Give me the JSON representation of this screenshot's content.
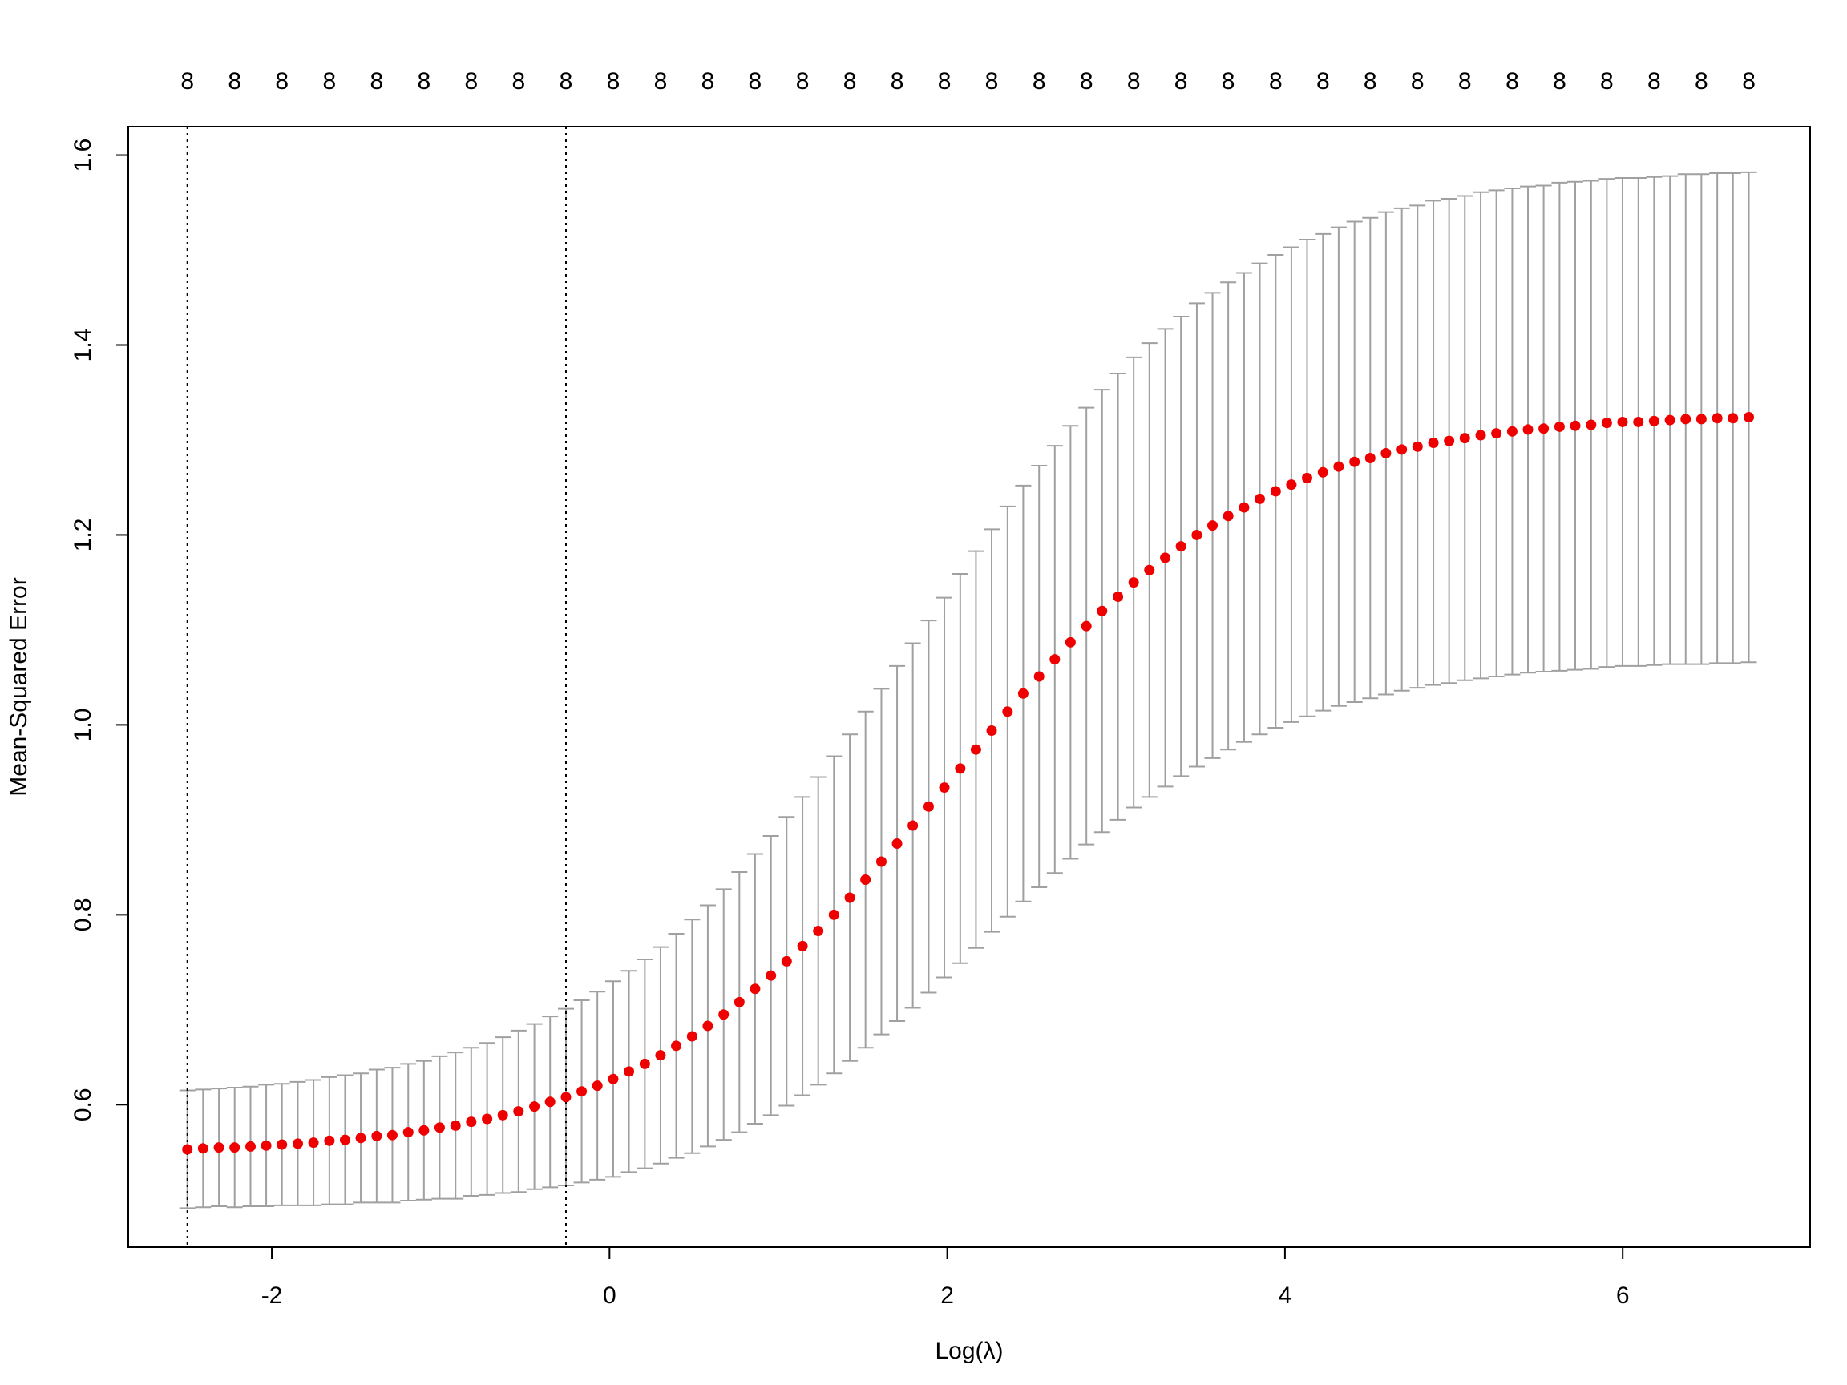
{
  "chart_data": {
    "type": "errorbar",
    "xlabel": "Log(λ)",
    "ylabel": "Mean-Squared Error",
    "x": [
      -2.5,
      -2.407,
      -2.313,
      -2.22,
      -2.126,
      -2.033,
      -1.94,
      -1.846,
      -1.753,
      -1.659,
      -1.566,
      -1.473,
      -1.379,
      -1.286,
      -1.192,
      -1.099,
      -1.006,
      -0.912,
      -0.819,
      -0.725,
      -0.632,
      -0.539,
      -0.445,
      -0.352,
      -0.258,
      -0.165,
      -0.072,
      0.022,
      0.115,
      0.209,
      0.302,
      0.395,
      0.489,
      0.582,
      0.676,
      0.769,
      0.862,
      0.956,
      1.049,
      1.143,
      1.236,
      1.329,
      1.423,
      1.516,
      1.61,
      1.703,
      1.796,
      1.89,
      1.983,
      2.077,
      2.17,
      2.263,
      2.357,
      2.45,
      2.544,
      2.637,
      2.73,
      2.824,
      2.917,
      3.011,
      3.104,
      3.197,
      3.291,
      3.384,
      3.478,
      3.571,
      3.664,
      3.758,
      3.851,
      3.945,
      4.038,
      4.131,
      4.225,
      4.318,
      4.412,
      4.505,
      4.598,
      4.692,
      4.785,
      4.879,
      4.972,
      5.065,
      5.159,
      5.252,
      5.346,
      5.439,
      5.532,
      5.626,
      5.719,
      5.813,
      5.906,
      5.999,
      6.093,
      6.186,
      6.28,
      6.373,
      6.466,
      6.56,
      6.653,
      6.747
    ],
    "values": [
      0.553,
      0.554,
      0.555,
      0.555,
      0.556,
      0.557,
      0.558,
      0.559,
      0.56,
      0.562,
      0.563,
      0.565,
      0.567,
      0.568,
      0.571,
      0.573,
      0.576,
      0.578,
      0.582,
      0.585,
      0.589,
      0.593,
      0.598,
      0.603,
      0.608,
      0.614,
      0.62,
      0.627,
      0.635,
      0.643,
      0.652,
      0.662,
      0.672,
      0.683,
      0.695,
      0.708,
      0.722,
      0.736,
      0.751,
      0.767,
      0.783,
      0.8,
      0.818,
      0.837,
      0.856,
      0.875,
      0.894,
      0.914,
      0.934,
      0.954,
      0.974,
      0.994,
      1.014,
      1.033,
      1.051,
      1.069,
      1.087,
      1.104,
      1.12,
      1.135,
      1.15,
      1.163,
      1.176,
      1.188,
      1.2,
      1.21,
      1.22,
      1.229,
      1.238,
      1.246,
      1.253,
      1.26,
      1.266,
      1.272,
      1.277,
      1.281,
      1.286,
      1.29,
      1.293,
      1.297,
      1.299,
      1.302,
      1.305,
      1.307,
      1.309,
      1.311,
      1.312,
      1.314,
      1.315,
      1.316,
      1.318,
      1.319,
      1.319,
      1.32,
      1.321,
      1.322,
      1.322,
      1.323,
      1.323,
      1.324
    ],
    "errors": [
      0.062,
      0.062,
      0.062,
      0.063,
      0.063,
      0.064,
      0.064,
      0.065,
      0.066,
      0.067,
      0.068,
      0.068,
      0.07,
      0.071,
      0.072,
      0.073,
      0.075,
      0.077,
      0.078,
      0.08,
      0.082,
      0.085,
      0.087,
      0.09,
      0.093,
      0.096,
      0.099,
      0.103,
      0.106,
      0.11,
      0.114,
      0.118,
      0.123,
      0.127,
      0.132,
      0.137,
      0.142,
      0.147,
      0.152,
      0.157,
      0.162,
      0.167,
      0.172,
      0.177,
      0.182,
      0.187,
      0.192,
      0.196,
      0.2,
      0.205,
      0.209,
      0.212,
      0.216,
      0.219,
      0.222,
      0.225,
      0.228,
      0.23,
      0.233,
      0.235,
      0.237,
      0.239,
      0.241,
      0.242,
      0.244,
      0.245,
      0.246,
      0.247,
      0.248,
      0.249,
      0.25,
      0.251,
      0.251,
      0.252,
      0.253,
      0.253,
      0.254,
      0.254,
      0.254,
      0.255,
      0.255,
      0.255,
      0.256,
      0.256,
      0.256,
      0.256,
      0.256,
      0.257,
      0.257,
      0.257,
      0.257,
      0.257,
      0.257,
      0.257,
      0.257,
      0.258,
      0.258,
      0.258,
      0.258,
      0.258
    ],
    "point_color": "#ee0000",
    "bar_color": "#a0a0a0",
    "reference_lines": [
      -2.5,
      -0.258
    ],
    "top_labels": {
      "x": [
        -2.5,
        -2.22,
        -1.94,
        -1.659,
        -1.379,
        -1.099,
        -0.819,
        -0.539,
        -0.258,
        0.022,
        0.302,
        0.582,
        0.862,
        1.143,
        1.423,
        1.703,
        1.983,
        2.263,
        2.544,
        2.824,
        3.104,
        3.384,
        3.664,
        3.945,
        4.225,
        4.505,
        4.785,
        5.065,
        5.346,
        5.626,
        5.906,
        6.186,
        6.466,
        6.747
      ],
      "labels": [
        8,
        8,
        8,
        8,
        8,
        8,
        8,
        8,
        8,
        8,
        8,
        8,
        8,
        8,
        8,
        8,
        8,
        8,
        8,
        8,
        8,
        8,
        8,
        8,
        8,
        8,
        8,
        8,
        8,
        8,
        8,
        8,
        8,
        8
      ]
    },
    "xlim": [
      -2.85,
      7.11
    ],
    "ylim": [
      0.45,
      1.63
    ],
    "xticks": [
      -2,
      0,
      2,
      4,
      6
    ],
    "yticks": [
      0.6,
      0.8,
      {
        "value": 1,
        "label": "1.0"
      },
      1.2,
      1.4,
      1.6
    ],
    "grid": false
  }
}
